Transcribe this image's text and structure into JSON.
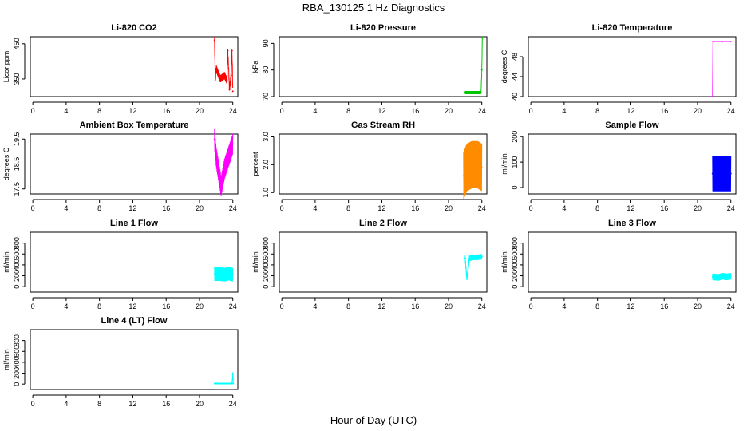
{
  "main_title": "RBA_130125  1 Hz Diagnostics",
  "xlabel": "Hour of Day (UTC)",
  "chart_data": [
    {
      "type": "line",
      "title": "Li-820 CO2",
      "ylabel": "Licor ppm",
      "color": "#ff0000",
      "xticks": [
        "0",
        "4",
        "8",
        "12",
        "16",
        "20",
        "24"
      ],
      "yticks": [
        "350",
        "450"
      ],
      "xlim": [
        -0.3,
        24.6
      ],
      "ylim": [
        300,
        470
      ],
      "series": [
        {
          "name": "Li-820 CO2",
          "x": [
            21.8,
            21.9,
            22.0,
            22.5,
            23.0,
            23.3,
            23.4,
            23.6,
            23.8,
            23.9,
            24.0
          ],
          "y": [
            460,
            345,
            380,
            350,
            360,
            345,
            430,
            320,
            360,
            430,
            315
          ],
          "band": 20
        }
      ]
    },
    {
      "type": "line",
      "title": "Li-820 Pressure",
      "ylabel": "kPa",
      "color": "#00c800",
      "xticks": [
        "0",
        "4",
        "8",
        "12",
        "16",
        "20",
        "24"
      ],
      "yticks": [
        "70",
        "80",
        "90"
      ],
      "xlim": [
        -0.3,
        24.6
      ],
      "ylim": [
        70,
        92.5
      ],
      "series": [
        {
          "name": "Li-820 Pressure",
          "x": [
            22.0,
            23.0,
            23.9,
            24.0,
            24.05
          ],
          "y": [
            71.5,
            71.5,
            71.5,
            80,
            92
          ],
          "band": 1.2
        }
      ]
    },
    {
      "type": "line",
      "title": "Li-820 Temperature",
      "ylabel": "degrees C",
      "color": "#ff00ff",
      "xticks": [
        "0",
        "4",
        "8",
        "12",
        "16",
        "20",
        "24"
      ],
      "yticks": [
        "40",
        "44",
        "48"
      ],
      "xlim": [
        -0.3,
        24.6
      ],
      "ylim": [
        40,
        52
      ],
      "series": [
        {
          "name": "Li-820 Temperature",
          "x": [
            21.8,
            21.85,
            22.0,
            23.0,
            24.0
          ],
          "y": [
            40,
            51.0,
            51.0,
            51.0,
            51.0
          ],
          "band": 0.2
        }
      ]
    },
    {
      "type": "line",
      "title": "Ambient Box Temperature",
      "ylabel": "degrees C",
      "color": "#ff00ff",
      "xticks": [
        "0",
        "4",
        "8",
        "12",
        "16",
        "20",
        "24"
      ],
      "yticks": [
        "17.5",
        "18.5",
        "19.5"
      ],
      "xlim": [
        -0.3,
        24.6
      ],
      "ylim": [
        17.3,
        19.7
      ],
      "series": [
        {
          "name": "Ambient Box Temperature",
          "x": [
            21.8,
            22.0,
            22.3,
            22.6,
            23.0,
            23.5,
            24.0
          ],
          "y": [
            19.5,
            18.8,
            18.2,
            17.6,
            18.3,
            18.8,
            19.3
          ],
          "band": 0.8
        }
      ]
    },
    {
      "type": "line",
      "title": "Gas Stream RH",
      "ylabel": "percent",
      "color": "#ff8c00",
      "xticks": [
        "0",
        "4",
        "8",
        "12",
        "16",
        "20",
        "24"
      ],
      "yticks": [
        "1.0",
        "2.0",
        "3.0"
      ],
      "xlim": [
        -0.3,
        24.6
      ],
      "ylim": [
        0.95,
        3.1
      ],
      "series": [
        {
          "name": "Gas Stream RH",
          "x": [
            21.8,
            22.2,
            22.8,
            23.5,
            24.0
          ],
          "y": [
            1.6,
            1.9,
            2.0,
            2.0,
            1.9
          ],
          "band": 1.7
        }
      ]
    },
    {
      "type": "line",
      "title": "Sample Flow",
      "ylabel": "ml/min",
      "color": "#0000ff",
      "xticks": [
        "0",
        "4",
        "8",
        "12",
        "16",
        "20",
        "24"
      ],
      "yticks": [
        "0",
        "100",
        "200"
      ],
      "xlim": [
        -0.3,
        24.6
      ],
      "ylim": [
        -25,
        210
      ],
      "series": [
        {
          "name": "Sample Flow",
          "x": [
            21.8,
            22.5,
            23.0,
            23.5,
            24.0
          ],
          "y": [
            55,
            55,
            55,
            55,
            55
          ],
          "band": 140
        }
      ]
    },
    {
      "type": "line",
      "title": "Line 1 Flow",
      "ylabel": "ml/min",
      "color": "#00ffff",
      "xticks": [
        "0",
        "4",
        "8",
        "12",
        "16",
        "20",
        "24"
      ],
      "yticks": [
        "0",
        "200",
        "400",
        "600",
        "800"
      ],
      "xlim": [
        -0.3,
        24.6
      ],
      "ylim": [
        -100,
        1000
      ],
      "series": [
        {
          "name": "Line 1 Flow",
          "x": [
            21.8,
            22.5,
            23.0,
            23.5,
            24.0
          ],
          "y": [
            230,
            230,
            220,
            240,
            220
          ],
          "band": 250
        }
      ]
    },
    {
      "type": "line",
      "title": "Line 2 Flow",
      "ylabel": "ml/min",
      "color": "#00ffff",
      "xticks": [
        "0",
        "4",
        "8",
        "12",
        "16",
        "20",
        "24"
      ],
      "yticks": [
        "0",
        "200",
        "400",
        "600",
        "800"
      ],
      "xlim": [
        -0.3,
        24.6
      ],
      "ylim": [
        -100,
        1000
      ],
      "series": [
        {
          "name": "Line 2 Flow",
          "x": [
            22.0,
            22.2,
            22.5,
            23.0,
            23.5,
            24.0
          ],
          "y": [
            520,
            140,
            520,
            540,
            540,
            550
          ],
          "band": 100
        }
      ]
    },
    {
      "type": "line",
      "title": "Line 3 Flow",
      "ylabel": "ml/min",
      "color": "#00ffff",
      "xticks": [
        "0",
        "4",
        "8",
        "12",
        "16",
        "20",
        "24"
      ],
      "yticks": [
        "0",
        "200",
        "400",
        "600",
        "800"
      ],
      "xlim": [
        -0.3,
        24.6
      ],
      "ylim": [
        -100,
        1000
      ],
      "series": [
        {
          "name": "Line 3 Flow",
          "x": [
            21.8,
            22.5,
            23.0,
            23.5,
            24.0
          ],
          "y": [
            180,
            170,
            190,
            180,
            190
          ],
          "band": 120
        }
      ]
    },
    {
      "type": "line",
      "title": "Line 4 (LT) Flow",
      "ylabel": "ml/min",
      "color": "#00ffff",
      "xticks": [
        "0",
        "4",
        "8",
        "12",
        "16",
        "20",
        "24"
      ],
      "yticks": [
        "0",
        "200",
        "400",
        "600",
        "800"
      ],
      "xlim": [
        -0.3,
        24.6
      ],
      "ylim": [
        -100,
        1000
      ],
      "series": [
        {
          "name": "Line 4 (LT) Flow",
          "x": [
            21.8,
            23.0,
            23.9,
            24.0,
            24.05
          ],
          "y": [
            10,
            10,
            10,
            200,
            10
          ],
          "band": 25
        }
      ]
    }
  ]
}
